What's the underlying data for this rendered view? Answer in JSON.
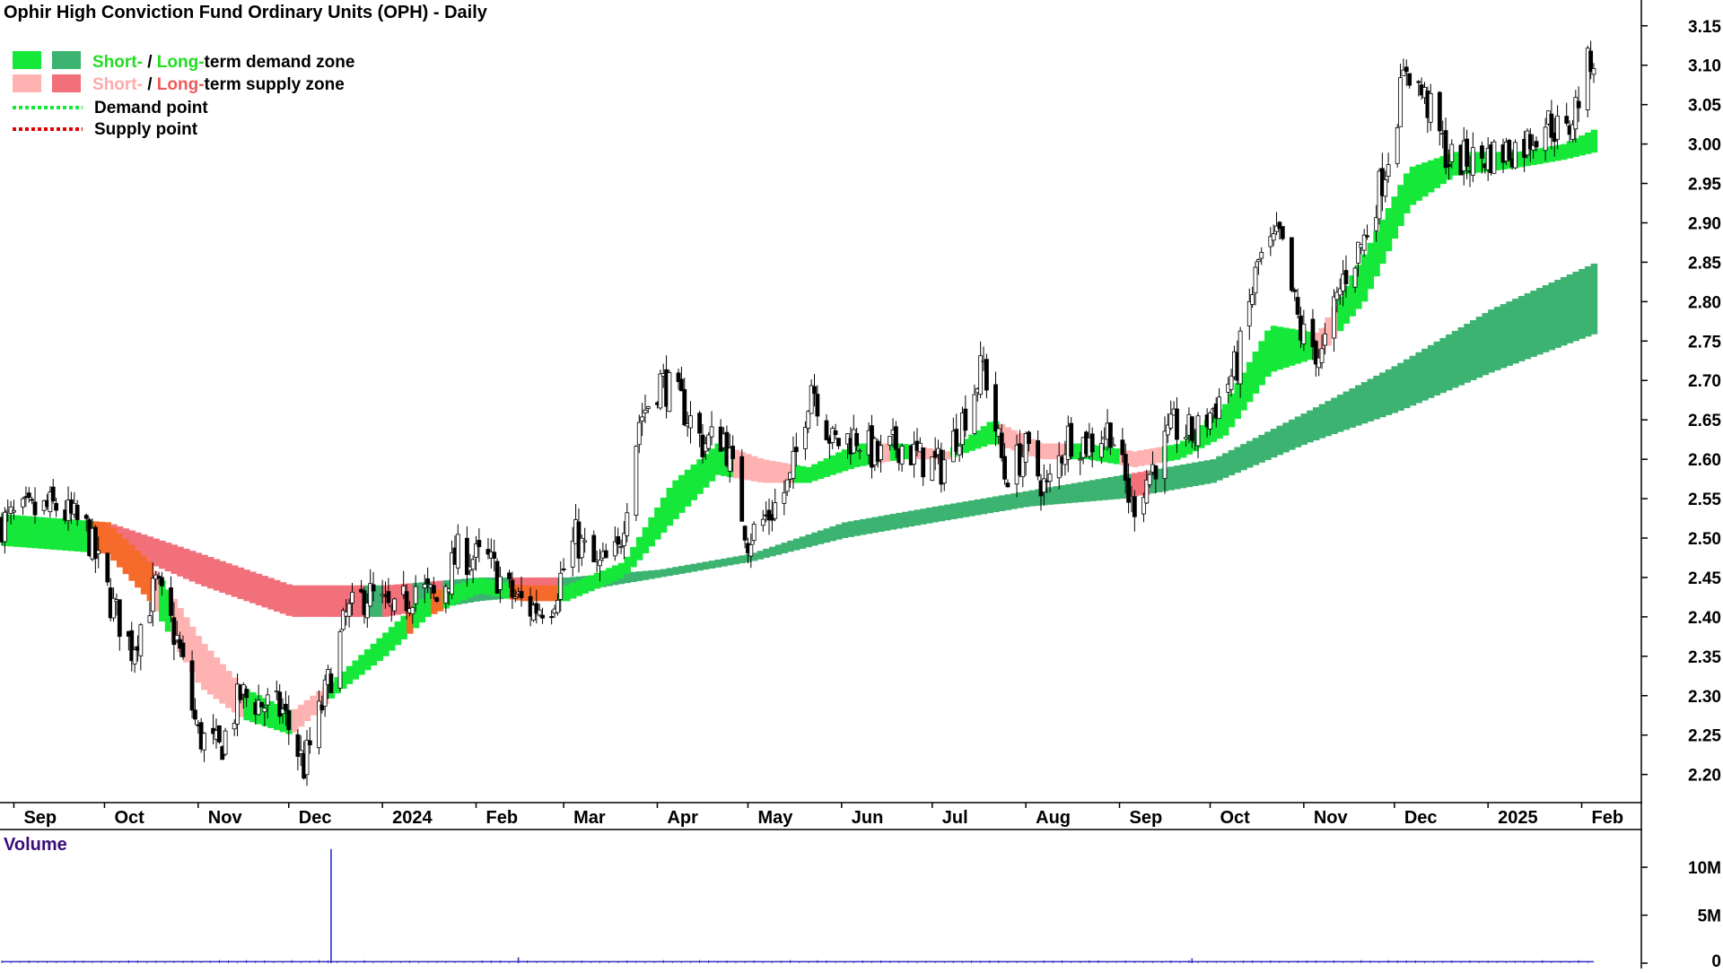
{
  "title": "Ophir High Conviction Fund Ordinary Units (OPH) - Daily",
  "legend": {
    "demand_zone": {
      "short": "Short-",
      "sep": " / ",
      "long": "Long-",
      "rest": "term demand zone"
    },
    "supply_zone": {
      "short": "Short-",
      "sep": " / ",
      "long": "Long-",
      "rest": "term supply zone"
    },
    "demand_point": "Demand point",
    "supply_point": "Supply point"
  },
  "colors": {
    "short_demand": "#16e83a",
    "long_demand": "#3cb371",
    "short_supply": "#ffb2b2",
    "long_supply": "#f2707a",
    "overlap": "#f66a2a",
    "demand_text": "#22dd22",
    "short_supply_text": "#ffaaaa",
    "long_supply_text": "#ee5a5a",
    "volume": "#3030c0",
    "volume_label": "#3c0d7a"
  },
  "volume_label": "Volume",
  "chart_data": {
    "type": "candlestick",
    "y_axis": {
      "ticks": [
        "3.15",
        "3.10",
        "3.05",
        "3.00",
        "2.95",
        "2.90",
        "2.85",
        "2.80",
        "2.75",
        "2.70",
        "2.65",
        "2.60",
        "2.55",
        "2.50",
        "2.45",
        "2.40",
        "2.35",
        "2.30",
        "2.25",
        "2.20"
      ],
      "ylim": [
        2.17,
        3.16
      ]
    },
    "x_axis": {
      "ticks": [
        "Sep",
        "Oct",
        "Nov",
        "Dec",
        "2024",
        "Feb",
        "Mar",
        "Apr",
        "May",
        "Jun",
        "Jul",
        "Aug",
        "Sep",
        "Oct",
        "Nov",
        "Dec",
        "2025",
        "Feb"
      ],
      "range": [
        "2023-08-28",
        "2025-02-05"
      ]
    },
    "series": [
      {
        "kind": "close",
        "points": [
          [
            "2023-08-28",
            2.52
          ],
          [
            "2023-09-05",
            2.53
          ],
          [
            "2023-09-15",
            2.54
          ],
          [
            "2023-09-25",
            2.51
          ],
          [
            "2023-10-03",
            2.42
          ],
          [
            "2023-10-10",
            2.36
          ],
          [
            "2023-10-18",
            2.44
          ],
          [
            "2023-10-25",
            2.37
          ],
          [
            "2023-11-01",
            2.25
          ],
          [
            "2023-11-08",
            2.23
          ],
          [
            "2023-11-15",
            2.3
          ],
          [
            "2023-11-22",
            2.29
          ],
          [
            "2023-11-29",
            2.28
          ],
          [
            "2023-12-06",
            2.21
          ],
          [
            "2023-12-13",
            2.3
          ],
          [
            "2023-12-20",
            2.4
          ],
          [
            "2023-12-27",
            2.43
          ],
          [
            "2024-01-05",
            2.4
          ],
          [
            "2024-01-12",
            2.44
          ],
          [
            "2024-01-19",
            2.42
          ],
          [
            "2024-01-26",
            2.48
          ],
          [
            "2024-02-05",
            2.47
          ],
          [
            "2024-02-12",
            2.43
          ],
          [
            "2024-02-19",
            2.41
          ],
          [
            "2024-02-26",
            2.42
          ],
          [
            "2024-03-05",
            2.5
          ],
          [
            "2024-03-12",
            2.46
          ],
          [
            "2024-03-19",
            2.48
          ],
          [
            "2024-03-26",
            2.65
          ],
          [
            "2024-04-02",
            2.7
          ],
          [
            "2024-04-09",
            2.67
          ],
          [
            "2024-04-16",
            2.62
          ],
          [
            "2024-04-23",
            2.63
          ],
          [
            "2024-05-01",
            2.5
          ],
          [
            "2024-05-08",
            2.53
          ],
          [
            "2024-05-15",
            2.57
          ],
          [
            "2024-05-22",
            2.7
          ],
          [
            "2024-05-29",
            2.62
          ],
          [
            "2024-06-06",
            2.63
          ],
          [
            "2024-06-13",
            2.6
          ],
          [
            "2024-06-20",
            2.62
          ],
          [
            "2024-06-27",
            2.6
          ],
          [
            "2024-07-04",
            2.59
          ],
          [
            "2024-07-11",
            2.65
          ],
          [
            "2024-07-18",
            2.72
          ],
          [
            "2024-07-25",
            2.58
          ],
          [
            "2024-08-01",
            2.61
          ],
          [
            "2024-08-08",
            2.56
          ],
          [
            "2024-08-15",
            2.63
          ],
          [
            "2024-08-22",
            2.62
          ],
          [
            "2024-08-29",
            2.64
          ],
          [
            "2024-09-05",
            2.54
          ],
          [
            "2024-09-12",
            2.59
          ],
          [
            "2024-09-19",
            2.64
          ],
          [
            "2024-09-26",
            2.63
          ],
          [
            "2024-10-03",
            2.67
          ],
          [
            "2024-10-10",
            2.72
          ],
          [
            "2024-10-17",
            2.85
          ],
          [
            "2024-10-24",
            2.88
          ],
          [
            "2024-10-31",
            2.76
          ],
          [
            "2024-11-07",
            2.73
          ],
          [
            "2024-11-14",
            2.83
          ],
          [
            "2024-11-21",
            2.88
          ],
          [
            "2024-11-28",
            2.97
          ],
          [
            "2024-12-05",
            3.1
          ],
          [
            "2024-12-12",
            3.05
          ],
          [
            "2024-12-19",
            2.98
          ],
          [
            "2024-12-27",
            2.98
          ],
          [
            "2025-01-06",
            2.99
          ],
          [
            "2025-01-13",
            3.0
          ],
          [
            "2025-01-20",
            3.03
          ],
          [
            "2025-01-27",
            3.01
          ],
          [
            "2025-02-04",
            3.11
          ]
        ]
      },
      {
        "name": "Short-term zone",
        "kind": "band",
        "upper": [
          [
            "2023-08-28",
            2.53
          ],
          [
            "2023-10-01",
            2.52
          ],
          [
            "2023-10-15",
            2.47
          ],
          [
            "2023-11-01",
            2.37
          ],
          [
            "2023-11-15",
            2.31
          ],
          [
            "2023-12-01",
            2.28
          ],
          [
            "2023-12-15",
            2.32
          ],
          [
            "2024-01-01",
            2.38
          ],
          [
            "2024-01-15",
            2.43
          ],
          [
            "2024-02-01",
            2.45
          ],
          [
            "2024-02-15",
            2.44
          ],
          [
            "2024-03-01",
            2.44
          ],
          [
            "2024-03-20",
            2.47
          ],
          [
            "2024-04-05",
            2.57
          ],
          [
            "2024-04-20",
            2.62
          ],
          [
            "2024-05-05",
            2.6
          ],
          [
            "2024-05-20",
            2.59
          ],
          [
            "2024-06-05",
            2.62
          ],
          [
            "2024-06-20",
            2.62
          ],
          [
            "2024-07-05",
            2.61
          ],
          [
            "2024-07-20",
            2.65
          ],
          [
            "2024-08-05",
            2.62
          ],
          [
            "2024-08-20",
            2.62
          ],
          [
            "2024-09-05",
            2.61
          ],
          [
            "2024-09-20",
            2.62
          ],
          [
            "2024-10-05",
            2.67
          ],
          [
            "2024-10-20",
            2.77
          ],
          [
            "2024-11-05",
            2.76
          ],
          [
            "2024-11-20",
            2.86
          ],
          [
            "2024-12-05",
            2.97
          ],
          [
            "2024-12-20",
            2.99
          ],
          [
            "2025-01-10",
            2.99
          ],
          [
            "2025-01-25",
            3.0
          ],
          [
            "2025-02-05",
            3.02
          ]
        ],
        "lower": [
          [
            "2023-08-28",
            2.49
          ],
          [
            "2023-10-01",
            2.48
          ],
          [
            "2023-10-15",
            2.42
          ],
          [
            "2023-11-01",
            2.31
          ],
          [
            "2023-11-15",
            2.27
          ],
          [
            "2023-12-01",
            2.25
          ],
          [
            "2023-12-15",
            2.3
          ],
          [
            "2024-01-01",
            2.35
          ],
          [
            "2024-01-15",
            2.4
          ],
          [
            "2024-02-01",
            2.43
          ],
          [
            "2024-02-15",
            2.42
          ],
          [
            "2024-03-01",
            2.42
          ],
          [
            "2024-03-20",
            2.45
          ],
          [
            "2024-04-05",
            2.52
          ],
          [
            "2024-04-20",
            2.58
          ],
          [
            "2024-05-05",
            2.57
          ],
          [
            "2024-05-20",
            2.57
          ],
          [
            "2024-06-05",
            2.59
          ],
          [
            "2024-06-20",
            2.6
          ],
          [
            "2024-07-05",
            2.6
          ],
          [
            "2024-07-20",
            2.62
          ],
          [
            "2024-08-05",
            2.6
          ],
          [
            "2024-08-20",
            2.6
          ],
          [
            "2024-09-05",
            2.59
          ],
          [
            "2024-09-20",
            2.6
          ],
          [
            "2024-10-05",
            2.63
          ],
          [
            "2024-10-20",
            2.71
          ],
          [
            "2024-11-05",
            2.73
          ],
          [
            "2024-11-20",
            2.8
          ],
          [
            "2024-12-05",
            2.92
          ],
          [
            "2024-12-20",
            2.96
          ],
          [
            "2025-01-10",
            2.97
          ],
          [
            "2025-01-25",
            2.98
          ],
          [
            "2025-02-05",
            2.99
          ]
        ]
      },
      {
        "name": "Long-term zone",
        "kind": "band",
        "upper": [
          [
            "2023-08-28",
            2.53
          ],
          [
            "2023-10-01",
            2.52
          ],
          [
            "2023-11-01",
            2.48
          ],
          [
            "2023-12-01",
            2.44
          ],
          [
            "2024-01-01",
            2.44
          ],
          [
            "2024-02-01",
            2.45
          ],
          [
            "2024-03-01",
            2.45
          ],
          [
            "2024-04-01",
            2.46
          ],
          [
            "2024-05-01",
            2.48
          ],
          [
            "2024-06-01",
            2.52
          ],
          [
            "2024-07-01",
            2.54
          ],
          [
            "2024-08-01",
            2.56
          ],
          [
            "2024-09-01",
            2.58
          ],
          [
            "2024-10-01",
            2.6
          ],
          [
            "2024-11-01",
            2.66
          ],
          [
            "2024-12-01",
            2.72
          ],
          [
            "2025-01-01",
            2.79
          ],
          [
            "2025-02-05",
            2.85
          ]
        ],
        "lower": [
          [
            "2023-08-28",
            2.49
          ],
          [
            "2023-10-01",
            2.49
          ],
          [
            "2023-11-01",
            2.44
          ],
          [
            "2023-12-01",
            2.4
          ],
          [
            "2024-01-01",
            2.4
          ],
          [
            "2024-02-01",
            2.42
          ],
          [
            "2024-03-01",
            2.43
          ],
          [
            "2024-04-01",
            2.45
          ],
          [
            "2024-05-01",
            2.47
          ],
          [
            "2024-06-01",
            2.5
          ],
          [
            "2024-07-01",
            2.52
          ],
          [
            "2024-08-01",
            2.54
          ],
          [
            "2024-09-01",
            2.55
          ],
          [
            "2024-10-01",
            2.57
          ],
          [
            "2024-11-01",
            2.62
          ],
          [
            "2024-12-01",
            2.66
          ],
          [
            "2025-01-01",
            2.71
          ],
          [
            "2025-02-05",
            2.76
          ]
        ]
      }
    ],
    "volume": {
      "ticks": [
        "10M",
        "5M",
        "0"
      ],
      "ylim": [
        0,
        13000000
      ],
      "baseline": 150000,
      "spikes": [
        [
          "2023-12-15",
          11900000
        ],
        [
          "2024-02-15",
          600000
        ],
        [
          "2024-09-25",
          500000
        ]
      ]
    }
  }
}
